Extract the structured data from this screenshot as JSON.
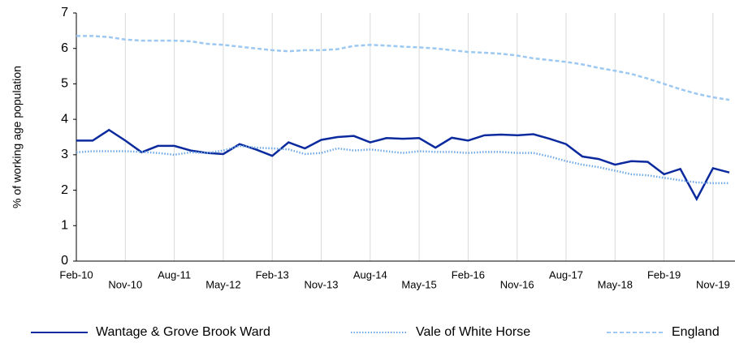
{
  "chart_data": {
    "type": "line",
    "y_label": "% of working age population",
    "categories": [
      "Feb-10",
      null,
      null,
      "Nov-10",
      null,
      null,
      "Aug-11",
      null,
      null,
      "May-12",
      null,
      null,
      "Feb-13",
      null,
      null,
      "Nov-13",
      null,
      null,
      "Aug-14",
      null,
      null,
      "May-15",
      null,
      null,
      "Feb-16",
      null,
      null,
      "Nov-16",
      null,
      null,
      "Aug-17",
      null,
      null,
      "May-18",
      null,
      null,
      "Feb-19",
      null,
      null,
      "Nov-19",
      null
    ],
    "series": [
      {
        "name": "Wantage & Grove Brook Ward",
        "color": "#0b2a9e",
        "style": "solid",
        "values": [
          3.4,
          3.4,
          3.7,
          3.4,
          3.07,
          3.25,
          3.25,
          3.12,
          3.05,
          3.02,
          3.3,
          3.15,
          2.97,
          3.35,
          3.18,
          3.42,
          3.5,
          3.53,
          3.35,
          3.47,
          3.45,
          3.47,
          3.2,
          3.48,
          3.4,
          3.55,
          3.57,
          3.55,
          3.58,
          3.45,
          3.3,
          2.95,
          2.88,
          2.72,
          2.82,
          2.8,
          2.45,
          2.6,
          1.75,
          2.62,
          2.5
        ]
      },
      {
        "name": "Vale of White Horse",
        "color": "#6fa8e6",
        "style": "dotted",
        "values": [
          3.07,
          3.1,
          3.1,
          3.1,
          3.08,
          3.05,
          3.0,
          3.07,
          3.05,
          3.12,
          3.25,
          3.2,
          3.18,
          3.15,
          3.02,
          3.05,
          3.18,
          3.12,
          3.15,
          3.1,
          3.05,
          3.1,
          3.08,
          3.08,
          3.05,
          3.08,
          3.08,
          3.05,
          3.05,
          2.95,
          2.82,
          2.72,
          2.65,
          2.55,
          2.45,
          2.42,
          2.35,
          2.28,
          2.22,
          2.2,
          2.2
        ]
      },
      {
        "name": "England",
        "color": "#9cc8f2",
        "style": "dashed",
        "values": [
          6.35,
          6.35,
          6.32,
          6.25,
          6.22,
          6.22,
          6.22,
          6.2,
          6.13,
          6.1,
          6.05,
          6.0,
          5.95,
          5.92,
          5.95,
          5.95,
          5.98,
          6.07,
          6.1,
          6.08,
          6.05,
          6.03,
          6.0,
          5.95,
          5.9,
          5.88,
          5.85,
          5.8,
          5.72,
          5.67,
          5.62,
          5.55,
          5.45,
          5.37,
          5.28,
          5.15,
          5.0,
          4.85,
          4.72,
          4.62,
          4.55
        ]
      }
    ],
    "ylim": [
      0,
      7
    ],
    "yticks": [
      0,
      1,
      2,
      3,
      4,
      5,
      6,
      7
    ],
    "grid": "vertical",
    "legend": "bottom"
  }
}
